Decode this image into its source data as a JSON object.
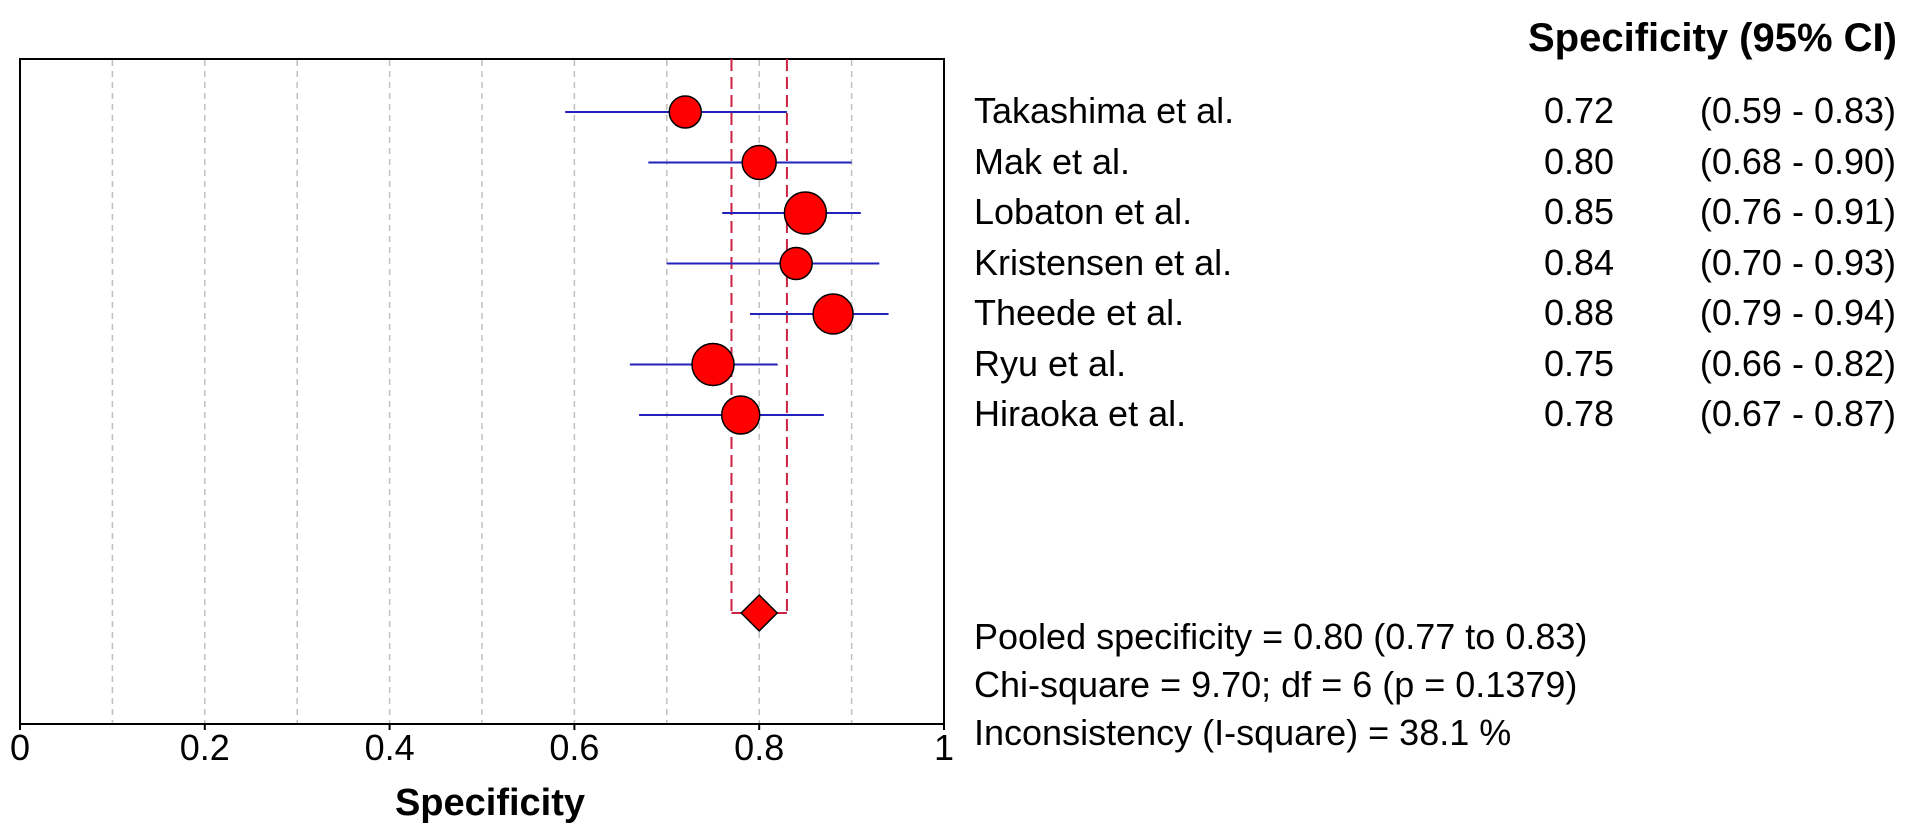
{
  "chart_data": {
    "type": "forest",
    "xlabel": "Specificity",
    "xlim": [
      0,
      1
    ],
    "xticks": [
      "0",
      "0.2",
      "0.4",
      "0.6",
      "0.8",
      "1"
    ],
    "xtick_values": [
      0,
      0.2,
      0.4,
      0.6,
      0.8,
      1
    ],
    "column_header": "Specificity (95% CI)",
    "grid": "vertical dashed",
    "colors": {
      "marker": "#ff0000",
      "ci_line": "#2222bb",
      "pooled_line": "#cc2244"
    },
    "studies": [
      {
        "name": "Takashima et al.",
        "spec": 0.72,
        "spec_label": "0.72",
        "lo": 0.59,
        "hi": 0.83,
        "ci_label": "(0.59 - 0.83)"
      },
      {
        "name": "Mak et al.",
        "spec": 0.8,
        "spec_label": "0.80",
        "lo": 0.68,
        "hi": 0.9,
        "ci_label": "(0.68 - 0.90)"
      },
      {
        "name": "Lobaton et al.",
        "spec": 0.85,
        "spec_label": "0.85",
        "lo": 0.76,
        "hi": 0.91,
        "ci_label": "(0.76 - 0.91)"
      },
      {
        "name": "Kristensen et al.",
        "spec": 0.84,
        "spec_label": "0.84",
        "lo": 0.7,
        "hi": 0.93,
        "ci_label": "(0.70 - 0.93)"
      },
      {
        "name": "Theede et al.",
        "spec": 0.88,
        "spec_label": "0.88",
        "lo": 0.79,
        "hi": 0.94,
        "ci_label": "(0.79 - 0.94)"
      },
      {
        "name": "Ryu et al.",
        "spec": 0.75,
        "spec_label": "0.75",
        "lo": 0.66,
        "hi": 0.82,
        "ci_label": "(0.66 - 0.82)"
      },
      {
        "name": "Hiraoka et al.",
        "spec": 0.78,
        "spec_label": "0.78",
        "lo": 0.67,
        "hi": 0.87,
        "ci_label": "(0.67 - 0.87)"
      }
    ],
    "pooled": {
      "spec": 0.8,
      "lo": 0.77,
      "hi": 0.83
    },
    "stats": [
      "Pooled specificity = 0.80 (0.77 to 0.83)",
      "Chi-square = 9.70; df = 6 (p = 0.1379)",
      "Inconsistency (I-square) = 38.1 %"
    ]
  }
}
